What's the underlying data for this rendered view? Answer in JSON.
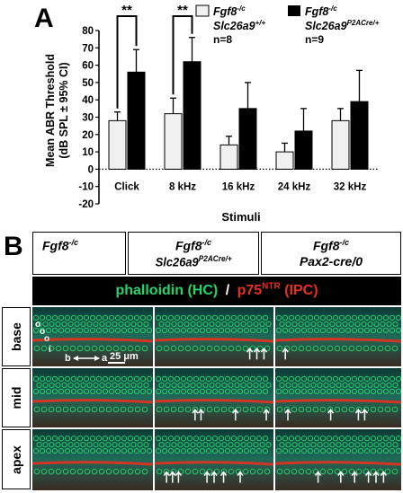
{
  "panelA": {
    "letter": "A",
    "ylabel_line1": "Mean ABR Threshold",
    "ylabel_line2": "(dB SPL ± 95% CI)",
    "xlabel": "Stimuli",
    "significance": "**",
    "legend": {
      "group1_gene": "Fgf8",
      "group1_gene_sup": "-/c",
      "group1_line2": "Slc26a9",
      "group1_line2_sup": "+/+",
      "group1_n": "n=8",
      "group2_gene": "Fgf8",
      "group2_gene_sup": "-/c",
      "group2_line2": "Slc26a9",
      "group2_line2_sup": "P2ACre/+",
      "group2_n": "n=9"
    },
    "colors": {
      "control": "#f0f0f0",
      "mutant": "#000000"
    }
  },
  "chart_data": {
    "type": "bar",
    "categories": [
      "Click",
      "8 kHz",
      "16 kHz",
      "24 kHz",
      "32 kHz"
    ],
    "series": [
      {
        "name": "Fgf8-/c Slc26a9+/+",
        "values": [
          28,
          32,
          14,
          10,
          28
        ],
        "ci": [
          5,
          9,
          5,
          5,
          7
        ]
      },
      {
        "name": "Fgf8-/c Slc26a9P2ACre/+",
        "values": [
          56,
          62,
          35,
          22,
          39
        ],
        "ci": [
          13,
          14,
          15,
          13,
          18
        ]
      }
    ],
    "yticks": [
      "80",
      "70",
      "60",
      "50",
      "40",
      "30",
      "20",
      "10",
      "0",
      "-10",
      "-20"
    ],
    "ylim": [
      -20,
      80
    ],
    "xlabel": "Stimuli",
    "ylabel": "Mean ABR Threshold (dB SPL ± 95% CI)",
    "significant_categories": [
      "Click",
      "8 kHz"
    ]
  },
  "panelB": {
    "letter": "B",
    "columns": [
      {
        "line1": "Fgf8",
        "line1_sup": "-/c",
        "line2": "",
        "line2_sup": ""
      },
      {
        "line1": "Fgf8",
        "line1_sup": "-/c",
        "line2": "Slc26a9",
        "line2_sup": "P2ACre/+"
      },
      {
        "line1": "Fgf8",
        "line1_sup": "-/c",
        "line2": "Pax2-cre/0",
        "line2_sup": ""
      }
    ],
    "stain_hc": "phalloidin (HC)",
    "stain_sep": "/",
    "stain_ipc": "p75",
    "stain_ipc_sup": "NTR",
    "stain_ipc_suffix": "(IPC)",
    "rows": [
      "base",
      "mid",
      "apex"
    ],
    "axis_b": "b",
    "axis_a": "a",
    "scale_bar": "25 μm",
    "ohc_labels": [
      "o",
      "o",
      "o"
    ],
    "ihc_label": "i",
    "colors": {
      "hc": "#27d36b",
      "ipc": "#e8301f",
      "tissue": "#1a5a4a"
    }
  }
}
